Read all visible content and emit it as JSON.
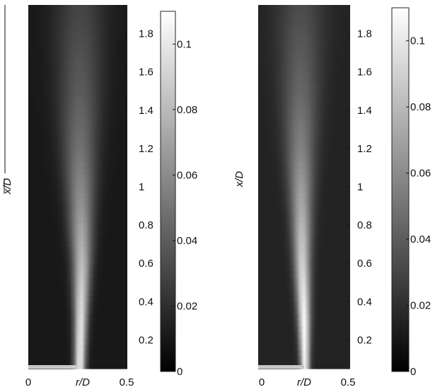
{
  "chart_data": [
    {
      "type": "heatmap",
      "panel": "left",
      "title": "",
      "xlabel": "r/D",
      "ylabel": "x/D",
      "ylabel_overline": true,
      "xlim": [
        0,
        0.5
      ],
      "ylim": [
        0.05,
        1.95
      ],
      "x_ticks": [
        {
          "value": 0,
          "label": "0"
        },
        {
          "value": 0.5,
          "label": "0.5"
        }
      ],
      "y_ticks": [
        {
          "value": 0.2,
          "label": "0.2"
        },
        {
          "value": 0.4,
          "label": "0.4"
        },
        {
          "value": 0.6,
          "label": "0.6"
        },
        {
          "value": 0.8,
          "label": "0.8"
        },
        {
          "value": 1.0,
          "label": "1"
        },
        {
          "value": 1.2,
          "label": "1.2"
        },
        {
          "value": 1.4,
          "label": "1.4"
        },
        {
          "value": 1.6,
          "label": "1.6"
        },
        {
          "value": 1.8,
          "label": "1.8"
        }
      ],
      "colorbar": {
        "colormap": "gray",
        "range": [
          0,
          0.11
        ],
        "ticks": [
          {
            "value": 0,
            "label": "0"
          },
          {
            "value": 0.02,
            "label": "0.02"
          },
          {
            "value": 0.04,
            "label": "0.04"
          },
          {
            "value": 0.06,
            "label": "0.06"
          },
          {
            "value": 0.08,
            "label": "0.08"
          },
          {
            "value": 0.1,
            "label": "0.1"
          }
        ]
      },
      "nozzle_marker": {
        "r_start": 0,
        "r_end": 0.25,
        "color": "#c8c8c8"
      },
      "jet_peak": [
        {
          "x": 0.05,
          "r": 0.26,
          "value": 0.108,
          "width": 0.018
        },
        {
          "x": 0.3,
          "r": 0.265,
          "value": 0.1,
          "width": 0.022
        },
        {
          "x": 0.6,
          "r": 0.27,
          "value": 0.08,
          "width": 0.032
        },
        {
          "x": 0.9,
          "r": 0.265,
          "value": 0.06,
          "width": 0.045
        },
        {
          "x": 1.2,
          "r": 0.26,
          "value": 0.045,
          "width": 0.06
        },
        {
          "x": 1.5,
          "r": 0.26,
          "value": 0.035,
          "width": 0.075
        },
        {
          "x": 1.95,
          "r": 0.26,
          "value": 0.025,
          "width": 0.09
        }
      ],
      "background_value": 0.008
    },
    {
      "type": "heatmap",
      "panel": "right",
      "title": "",
      "xlabel": "r/D",
      "ylabel": "x/D",
      "ylabel_overline": false,
      "xlim": [
        0,
        0.5
      ],
      "ylim": [
        0.05,
        1.95
      ],
      "x_ticks": [
        {
          "value": 0,
          "label": "0"
        },
        {
          "value": 0.5,
          "label": "0.5"
        }
      ],
      "y_ticks": [
        {
          "value": 0.2,
          "label": "0.2"
        },
        {
          "value": 0.4,
          "label": "0.4"
        },
        {
          "value": 0.6,
          "label": "0.6"
        },
        {
          "value": 0.8,
          "label": "0.8"
        },
        {
          "value": 1.0,
          "label": "1"
        },
        {
          "value": 1.2,
          "label": "1.2"
        },
        {
          "value": 1.4,
          "label": "1.4"
        },
        {
          "value": 1.6,
          "label": "1.6"
        },
        {
          "value": 1.8,
          "label": "1.8"
        }
      ],
      "colorbar": {
        "colormap": "gray",
        "range": [
          0,
          0.11
        ],
        "ticks": [
          {
            "value": 0,
            "label": "0"
          },
          {
            "value": 0.02,
            "label": "0.02"
          },
          {
            "value": 0.04,
            "label": "0.04"
          },
          {
            "value": 0.06,
            "label": "0.06"
          },
          {
            "value": 0.08,
            "label": "0.08"
          },
          {
            "value": 0.1,
            "label": "0.1"
          }
        ]
      },
      "nozzle_marker": {
        "r_start": 0,
        "r_end": 0.25,
        "color": "#c8c8c8"
      },
      "jet_peak": [
        {
          "x": 0.05,
          "r": 0.255,
          "value": 0.11,
          "width": 0.016
        },
        {
          "x": 0.3,
          "r": 0.25,
          "value": 0.11,
          "width": 0.022
        },
        {
          "x": 0.6,
          "r": 0.24,
          "value": 0.09,
          "width": 0.03
        },
        {
          "x": 0.9,
          "r": 0.235,
          "value": 0.07,
          "width": 0.04
        },
        {
          "x": 1.2,
          "r": 0.23,
          "value": 0.052,
          "width": 0.055
        },
        {
          "x": 1.5,
          "r": 0.23,
          "value": 0.04,
          "width": 0.07
        },
        {
          "x": 1.95,
          "r": 0.23,
          "value": 0.028,
          "width": 0.09
        }
      ],
      "background_value": 0.012
    }
  ]
}
